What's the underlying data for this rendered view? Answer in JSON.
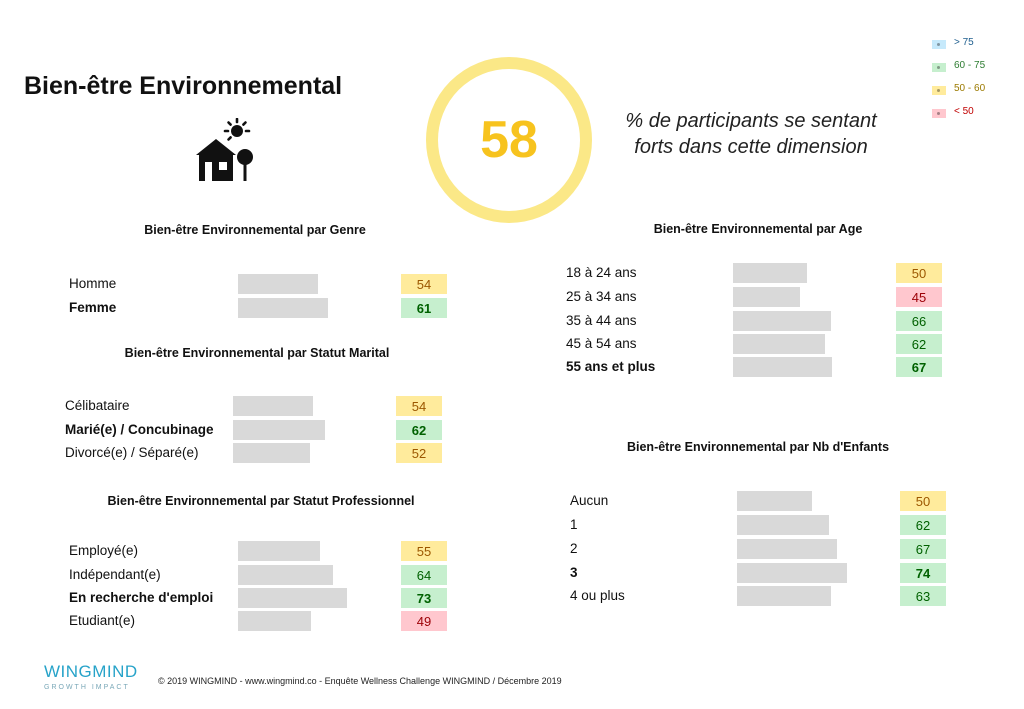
{
  "header": {
    "title": "Bien-être Environnemental",
    "score": "58",
    "score_caption_line1": "% de participants se sentant",
    "score_caption_line2": "forts dans cette dimension",
    "icon": "house-tree-sun-icon"
  },
  "legend": [
    {
      "label": "> 75",
      "bg": "#c6e9fb",
      "fg": "#1f5f8f"
    },
    {
      "label": "60 - 75",
      "bg": "#c6efce",
      "fg": "#2e7d32"
    },
    {
      "label": "50 - 60",
      "bg": "#ffeb9c",
      "fg": "#9c7a00"
    },
    {
      "label": "< 50",
      "bg": "#ffc7ce",
      "fg": "#c00000"
    }
  ],
  "colors": {
    "bar": "#d9d9d9",
    "green_bg": "#c6efce",
    "green_fg": "#006100",
    "yellow_bg": "#ffeb9c",
    "yellow_fg": "#9c5700",
    "red_bg": "#ffc7ce",
    "red_fg": "#9c0006",
    "ring": "#fbe887",
    "score": "#f7c31e"
  },
  "chart_data": [
    {
      "type": "bar",
      "title": "Bien-être Environnemental par Genre",
      "categories": [
        "Homme",
        "Femme"
      ],
      "values": [
        54,
        61
      ],
      "bold": [
        false,
        true
      ]
    },
    {
      "type": "bar",
      "title": "Bien-être Environnemental par Statut  Marital",
      "categories": [
        "Célibataire",
        "Marié(e) / Concubinage",
        "Divorcé(e) / Séparé(e)"
      ],
      "values": [
        54,
        62,
        52
      ],
      "bold": [
        false,
        true,
        false
      ]
    },
    {
      "type": "bar",
      "title": "Bien-être Environnemental par Statut  Professionnel",
      "categories": [
        "Employé(e)",
        "Indépendant(e)",
        "En recherche d'emploi",
        "Etudiant(e)"
      ],
      "values": [
        55,
        64,
        73,
        49
      ],
      "bold": [
        false,
        false,
        true,
        false
      ]
    },
    {
      "type": "bar",
      "title": "Bien-être Environnemental par Age",
      "categories": [
        "18 à 24 ans",
        "25 à 34 ans",
        "35 à 44 ans",
        "45 à 54 ans",
        "55 ans et plus"
      ],
      "values": [
        50,
        45,
        66,
        62,
        67
      ],
      "bold": [
        false,
        false,
        false,
        false,
        true
      ]
    },
    {
      "type": "bar",
      "title": "Bien-être Environnemental par Nb d'Enfants",
      "categories": [
        "Aucun",
        "1",
        "2",
        "3",
        "4 ou plus"
      ],
      "values": [
        50,
        62,
        67,
        74,
        63
      ],
      "bold": [
        false,
        false,
        false,
        true,
        false
      ]
    }
  ],
  "footer": {
    "logo": "WINGMIND",
    "logo_sub": "GROWTH IMPACT",
    "copyright": "© 2019 WINGMIND -  www.wingmind.co  - Enquête Wellness Challenge WINGMIND / Décembre 2019"
  }
}
